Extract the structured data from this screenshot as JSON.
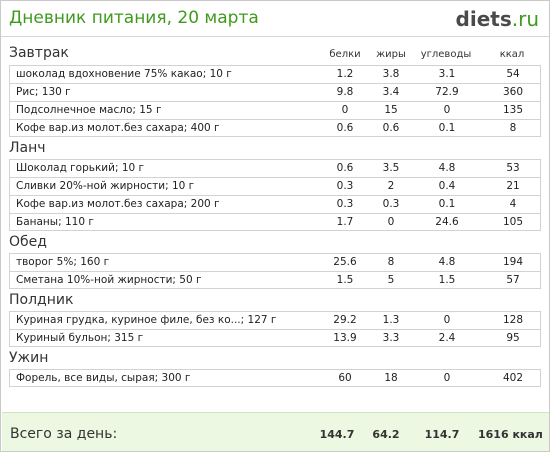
{
  "header": {
    "title": "Дневник питания, 20 марта",
    "brand_main": "diets",
    "brand_tld": ".ru"
  },
  "columns": {
    "protein": "белки",
    "fat": "жиры",
    "carbs": "углеводы",
    "kcal": "ккал"
  },
  "sections": [
    {
      "name": "Завтрак",
      "items": [
        {
          "name": "шоколад вдохновение 75% какао; 10 г",
          "protein": "1.2",
          "fat": "3.8",
          "carbs": "3.1",
          "kcal": "54"
        },
        {
          "name": "Рис; 130 г",
          "protein": "9.8",
          "fat": "3.4",
          "carbs": "72.9",
          "kcal": "360"
        },
        {
          "name": "Подсолнечное масло; 15 г",
          "protein": "0",
          "fat": "15",
          "carbs": "0",
          "kcal": "135"
        },
        {
          "name": "Кофе вар.из молот.без сахара; 400 г",
          "protein": "0.6",
          "fat": "0.6",
          "carbs": "0.1",
          "kcal": "8"
        }
      ]
    },
    {
      "name": "Ланч",
      "items": [
        {
          "name": "Шоколад горький; 10 г",
          "protein": "0.6",
          "fat": "3.5",
          "carbs": "4.8",
          "kcal": "53"
        },
        {
          "name": "Сливки 20%-ной жирности; 10 г",
          "protein": "0.3",
          "fat": "2",
          "carbs": "0.4",
          "kcal": "21"
        },
        {
          "name": "Кофе вар.из молот.без сахара; 200 г",
          "protein": "0.3",
          "fat": "0.3",
          "carbs": "0.1",
          "kcal": "4"
        },
        {
          "name": "Бананы; 110 г",
          "protein": "1.7",
          "fat": "0",
          "carbs": "24.6",
          "kcal": "105"
        }
      ]
    },
    {
      "name": "Обед",
      "items": [
        {
          "name": "творог 5%; 160 г",
          "protein": "25.6",
          "fat": "8",
          "carbs": "4.8",
          "kcal": "194"
        },
        {
          "name": "Сметана 10%-ной жирности; 50 г",
          "protein": "1.5",
          "fat": "5",
          "carbs": "1.5",
          "kcal": "57"
        }
      ]
    },
    {
      "name": "Полдник",
      "items": [
        {
          "name": "Куриная грудка, куриное филе, без ко...; 127 г",
          "protein": "29.2",
          "fat": "1.3",
          "carbs": "0",
          "kcal": "128"
        },
        {
          "name": "Куриный бульон; 315 г",
          "protein": "13.9",
          "fat": "3.3",
          "carbs": "2.4",
          "kcal": "95"
        }
      ]
    },
    {
      "name": "Ужин",
      "items": [
        {
          "name": "Форель, все виды, сырая; 300 г",
          "protein": "60",
          "fat": "18",
          "carbs": "0",
          "kcal": "402"
        }
      ]
    }
  ],
  "total": {
    "label": "Всего за день:",
    "protein": "144.7",
    "fat": "64.2",
    "carbs": "114.7",
    "kcal": "1616 ккал"
  },
  "colors": {
    "title_green": "#3f9a1d",
    "total_bg": "#edf8e2"
  }
}
